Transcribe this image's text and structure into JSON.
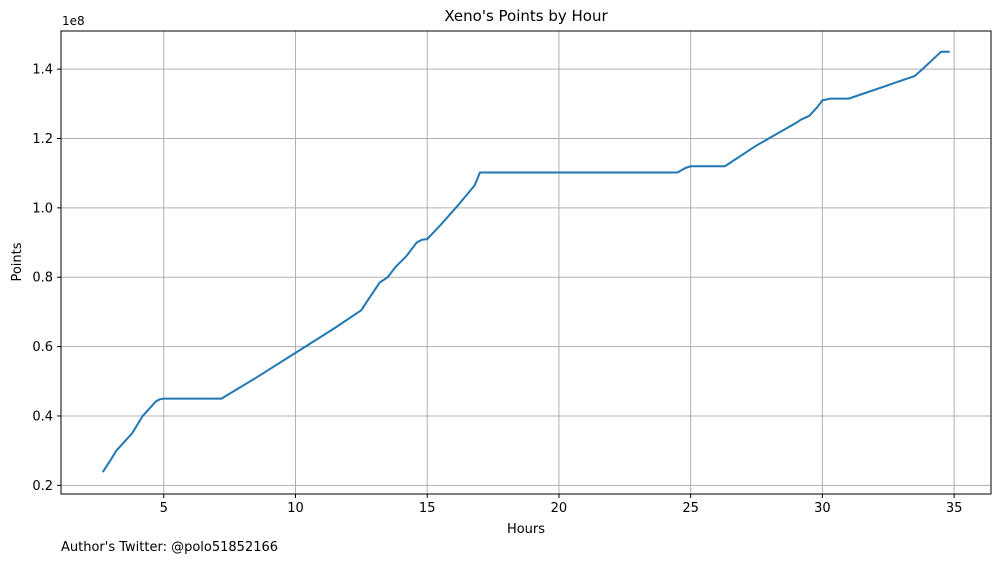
{
  "chart_data": {
    "type": "line",
    "title": "Xeno's Points by Hour",
    "xlabel": "Hours",
    "ylabel": "Points",
    "offset_label": "1e8",
    "xlim": [
      1.1,
      36.4
    ],
    "ylim": [
      17500000,
      151000000
    ],
    "xticks": [
      5,
      10,
      15,
      20,
      25,
      30,
      35
    ],
    "xtick_labels": [
      "5",
      "10",
      "15",
      "20",
      "25",
      "30",
      "35"
    ],
    "yticks": [
      20000000,
      40000000,
      60000000,
      80000000,
      100000000,
      120000000,
      140000000
    ],
    "ytick_labels": [
      "0.2",
      "0.4",
      "0.6",
      "0.8",
      "1.0",
      "1.2",
      "1.4"
    ],
    "grid": true,
    "series": [
      {
        "color": "#1f77b4",
        "x": [
          2.7,
          3.0,
          3.2,
          3.5,
          3.8,
          4.0,
          4.2,
          4.5,
          4.7,
          4.85,
          5.0,
          6.0,
          7.2,
          7.3,
          8.5,
          10.0,
          11.5,
          12.5,
          12.8,
          13.2,
          13.5,
          13.8,
          14.2,
          14.6,
          14.8,
          15.0,
          15.5,
          16.2,
          16.8,
          17.0,
          20.0,
          22.0,
          24.5,
          24.8,
          25.0,
          26.0,
          26.3,
          27.5,
          29.0,
          29.2,
          29.5,
          29.8,
          30.0,
          30.3,
          31.0,
          33.5,
          33.8,
          34.5,
          34.8
        ],
        "y": [
          24000000,
          27500000,
          30000000,
          32500000,
          35000000,
          37500000,
          40000000,
          42500000,
          44200000,
          44800000,
          45000000,
          45000000,
          45000000,
          45500000,
          51000000,
          58200000,
          65400000,
          70500000,
          74000000,
          78500000,
          80000000,
          83000000,
          86000000,
          90000000,
          90800000,
          91000000,
          95000000,
          101000000,
          106500000,
          110200000,
          110200000,
          110200000,
          110200000,
          111500000,
          112000000,
          112000000,
          112000000,
          118000000,
          124500000,
          125500000,
          126500000,
          129000000,
          131000000,
          131500000,
          131500000,
          138000000,
          140000000,
          145000000,
          145000000
        ]
      }
    ]
  },
  "footer": {
    "author_note": "Author's Twitter: @polo51852166"
  }
}
